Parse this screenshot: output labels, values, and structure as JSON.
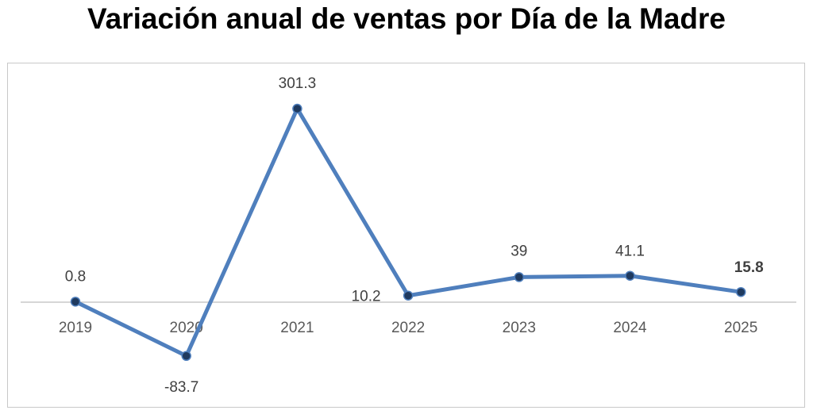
{
  "chart_data": {
    "type": "line",
    "title": "Variación anual de ventas por Día de la Madre",
    "xlabel": "",
    "ylabel": "",
    "categories": [
      "2019",
      "2020",
      "2021",
      "2022",
      "2023",
      "2024",
      "2025"
    ],
    "series": [
      {
        "values": [
          0.8,
          -83.7,
          301.3,
          10.2,
          39,
          41.1,
          15.8
        ],
        "color": "#4f7fbd",
        "marker_color": "#1f3a5f"
      }
    ],
    "data_labels": [
      "0.8",
      "-83.7",
      "301.3",
      "10.2",
      "39",
      "41.1",
      "15.8"
    ],
    "highlighted_label_index": 6,
    "ylim": [
      -100,
      350
    ],
    "grid": false,
    "legend": "none"
  }
}
